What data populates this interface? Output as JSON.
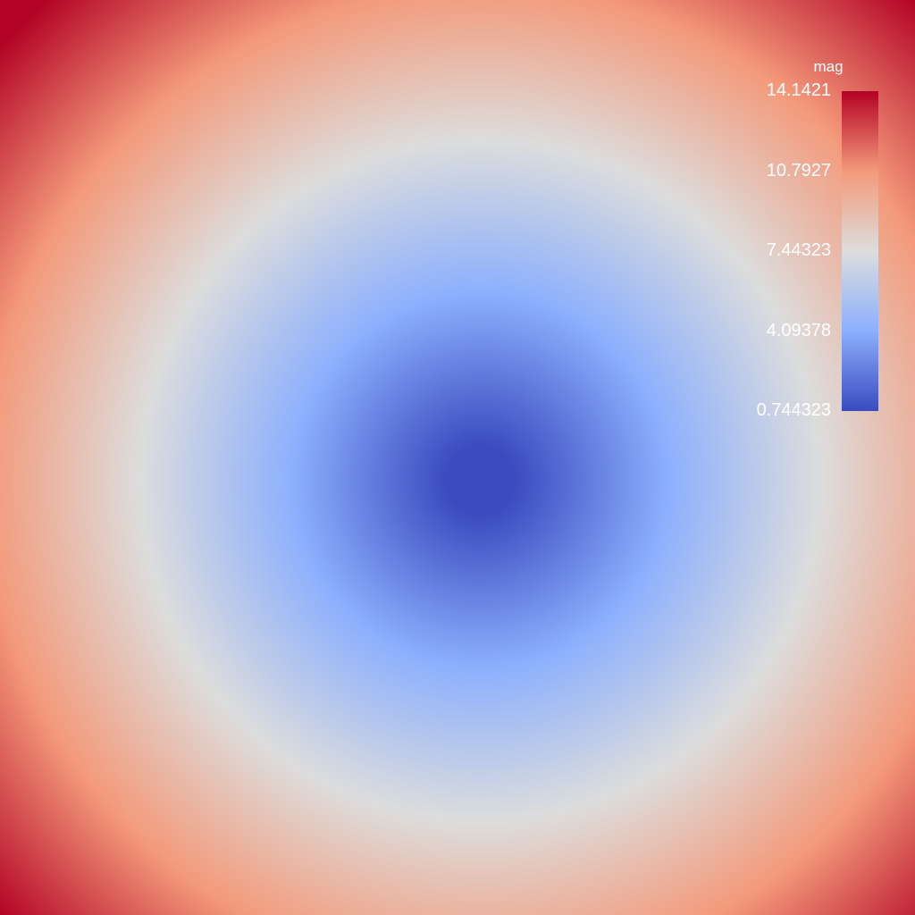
{
  "chart_data": {
    "type": "heatmap",
    "field": "magnitude",
    "colormap": "coolwarm",
    "colors": {
      "min": "#3b4cc0",
      "mid": "#dddddd",
      "max": "#b40426"
    },
    "legend": {
      "title": "mag",
      "placement": "top-right",
      "range": [
        0.744323,
        14.1421
      ],
      "ticks": [
        "14.1421",
        "10.7927",
        "7.44323",
        "4.09378",
        "0.744323"
      ]
    },
    "x_range": [
      -10,
      10
    ],
    "y_range": [
      -10,
      10
    ],
    "minimum_location": [
      0.5,
      -0.5
    ]
  }
}
